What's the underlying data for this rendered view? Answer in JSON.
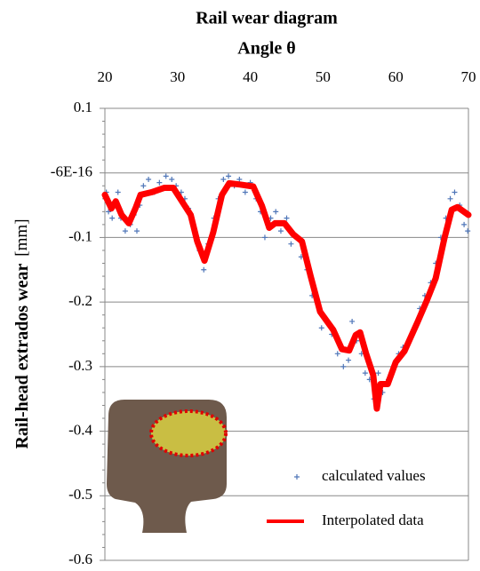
{
  "chart_data": {
    "type": "scatter_line",
    "title": "Rail wear diagram",
    "xlabel": "Angle θ",
    "ylabel": "Rail-head extrados wear",
    "ylabel_unit": "[mm]",
    "xlim": [
      20,
      70
    ],
    "xticks": [
      20,
      30,
      40,
      50,
      60,
      70
    ],
    "ylim": [
      -0.6,
      0.1
    ],
    "yticks": [
      0.1,
      {
        "value": -6e-16,
        "label": "-6E-16"
      },
      -0.1,
      -0.2,
      -0.3,
      -0.4,
      -0.5,
      -0.6
    ],
    "grid": true,
    "legend": "lower right",
    "series": [
      {
        "name": "calculated values",
        "color": "#4f76b8",
        "marker": "+",
        "x": [
          20.2,
          20.5,
          21,
          21.4,
          21.8,
          22.2,
          22.8,
          23.5,
          24,
          24.4,
          24.8,
          25.3,
          26,
          26.8,
          27.5,
          28.4,
          29.2,
          29.8,
          30.5,
          31,
          31.5,
          32.3,
          33,
          33.6,
          34.2,
          35,
          35.6,
          36.3,
          37,
          37.8,
          38.5,
          39.3,
          40,
          40.8,
          41.4,
          42,
          42.8,
          43.5,
          44.2,
          45,
          45.6,
          46.4,
          47,
          47.8,
          48.5,
          49.2,
          49.8,
          50.5,
          51.2,
          52,
          52.8,
          53.5,
          54,
          54.6,
          55.3,
          55.8,
          56.4,
          57,
          57.6,
          58.2,
          59,
          59.7,
          60.4,
          61,
          61.8,
          62.6,
          63.3,
          64,
          64.8,
          65.5,
          66.2,
          66.9,
          67.5,
          68.1,
          68.8,
          69.4,
          69.9
        ],
        "values": [
          -0.03,
          -0.06,
          -0.07,
          -0.05,
          -0.03,
          -0.07,
          -0.09,
          -0.08,
          -0.065,
          -0.09,
          -0.05,
          -0.02,
          -0.01,
          -0.03,
          -0.015,
          -0.005,
          -0.01,
          -0.02,
          -0.03,
          -0.04,
          -0.055,
          -0.09,
          -0.12,
          -0.15,
          -0.11,
          -0.07,
          -0.04,
          -0.01,
          -0.005,
          -0.02,
          -0.01,
          -0.03,
          -0.015,
          -0.04,
          -0.06,
          -0.1,
          -0.07,
          -0.06,
          -0.09,
          -0.07,
          -0.11,
          -0.1,
          -0.13,
          -0.15,
          -0.19,
          -0.2,
          -0.24,
          -0.23,
          -0.25,
          -0.28,
          -0.3,
          -0.29,
          -0.23,
          -0.26,
          -0.28,
          -0.31,
          -0.32,
          -0.35,
          -0.31,
          -0.34,
          -0.32,
          -0.3,
          -0.28,
          -0.27,
          -0.26,
          -0.24,
          -0.21,
          -0.19,
          -0.17,
          -0.14,
          -0.1,
          -0.07,
          -0.04,
          -0.03,
          -0.05,
          -0.08,
          -0.09
        ]
      },
      {
        "name": "Interpolated data",
        "color": "#ff0000",
        "marker": "line",
        "x": [
          20,
          20.9,
          21.5,
          22.3,
          23.3,
          24.2,
          24.9,
          26.4,
          28.2,
          29.4,
          30.6,
          31.8,
          32.7,
          33.7,
          34.9,
          36.1,
          37.1,
          38.6,
          40.4,
          41.6,
          42.6,
          43.4,
          44.7,
          45.9,
          47.1,
          48.3,
          49.6,
          51.4,
          52.6,
          53.6,
          54.5,
          55.1,
          55.9,
          56.9,
          57.4,
          57.9,
          58.9,
          60,
          61.2,
          63,
          64.3,
          65.5,
          66.7,
          67.7,
          68.5,
          70
        ],
        "values": [
          -0.034,
          -0.055,
          -0.044,
          -0.065,
          -0.078,
          -0.055,
          -0.034,
          -0.03,
          -0.023,
          -0.023,
          -0.044,
          -0.065,
          -0.106,
          -0.136,
          -0.092,
          -0.034,
          -0.016,
          -0.018,
          -0.021,
          -0.051,
          -0.085,
          -0.078,
          -0.078,
          -0.095,
          -0.106,
          -0.16,
          -0.215,
          -0.243,
          -0.273,
          -0.275,
          -0.251,
          -0.247,
          -0.279,
          -0.313,
          -0.365,
          -0.327,
          -0.327,
          -0.293,
          -0.276,
          -0.231,
          -0.197,
          -0.163,
          -0.101,
          -0.057,
          -0.053,
          -0.065
        ]
      }
    ]
  }
}
